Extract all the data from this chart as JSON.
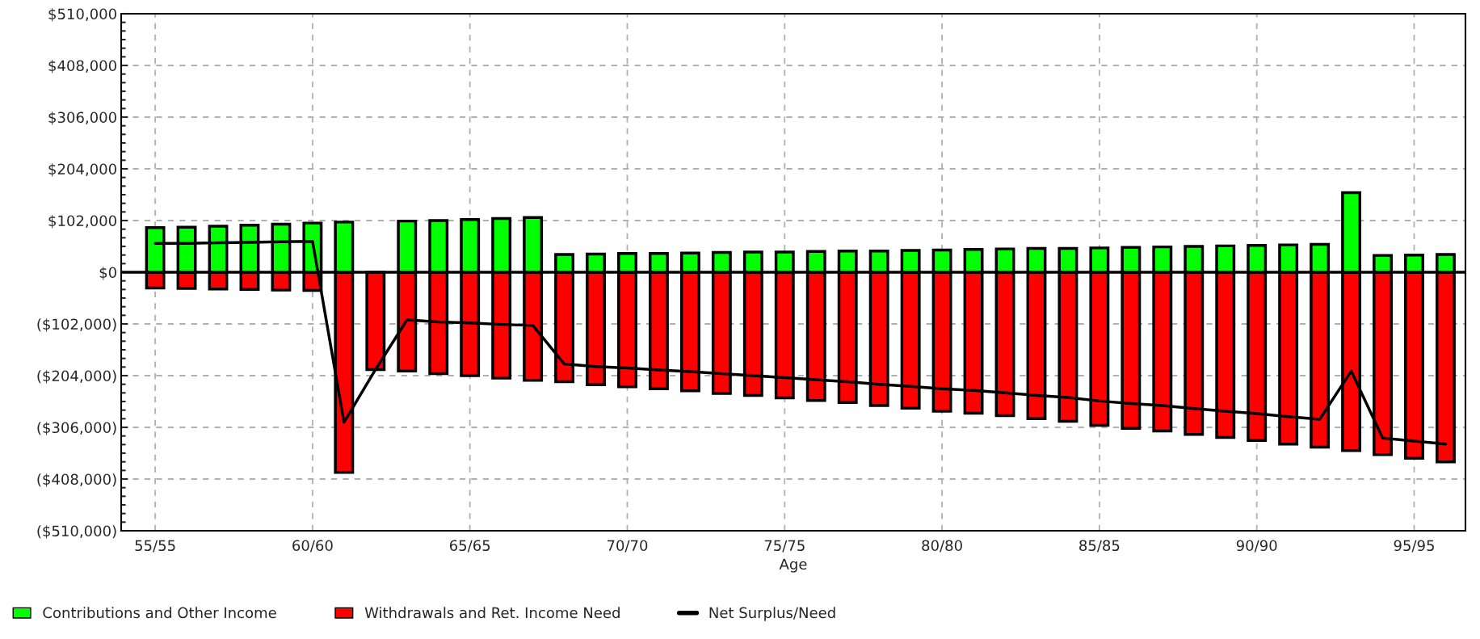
{
  "chart_data": {
    "type": "bar",
    "xlabel": "Age",
    "stacked": true,
    "categories": [
      "55/55",
      null,
      null,
      null,
      null,
      "60/60",
      null,
      null,
      null,
      null,
      "65/65",
      null,
      null,
      null,
      null,
      "70/70",
      null,
      null,
      null,
      null,
      "75/75",
      null,
      null,
      null,
      null,
      "80/80",
      null,
      null,
      null,
      null,
      "85/85",
      null,
      null,
      null,
      null,
      "90/90",
      null,
      null,
      null,
      null,
      "95/95",
      null
    ],
    "series": [
      {
        "name": "Contributions and Other Income",
        "color": "#00ff00",
        "values": [
          88000,
          89000,
          91000,
          93000,
          95000,
          97000,
          99000,
          null,
          101000,
          102000,
          104000,
          106000,
          108000,
          35000,
          36000,
          37000,
          37000,
          38000,
          39000,
          40000,
          40000,
          41000,
          42000,
          42000,
          43000,
          44000,
          45000,
          46000,
          47000,
          47000,
          48000,
          49000,
          50000,
          51000,
          52000,
          53000,
          54000,
          55000,
          157000,
          33000,
          34000,
          35000
        ]
      },
      {
        "name": "Withdrawals and Ret. Income Need",
        "color": "#ff0000",
        "values": [
          -31000,
          -32000,
          -33000,
          -34000,
          -35000,
          -36000,
          -395000,
          -192000,
          -195000,
          -200000,
          -204000,
          -209000,
          -213000,
          -216000,
          -222000,
          -226000,
          -230000,
          -234000,
          -239000,
          -243000,
          -248000,
          -253000,
          -257000,
          -263000,
          -268000,
          -274000,
          -278000,
          -283000,
          -289000,
          -294000,
          -302000,
          -308000,
          -313000,
          -320000,
          -326000,
          -332000,
          -339000,
          -345000,
          -352000,
          -360000,
          -367000,
          -374000
        ]
      },
      {
        "name": "Net Surplus/Need",
        "type": "line",
        "color": "#000000",
        "values": [
          57000,
          57000,
          58000,
          59000,
          60000,
          61000,
          -296000,
          -192000,
          -94000,
          -98000,
          -100000,
          -103000,
          -105000,
          -181000,
          -186000,
          -189000,
          -193000,
          -196000,
          -200000,
          -204000,
          -208000,
          -212000,
          -216000,
          -221000,
          -225000,
          -230000,
          -233000,
          -238000,
          -243000,
          -247000,
          -254000,
          -259000,
          -263000,
          -269000,
          -274000,
          -279000,
          -285000,
          -290000,
          -195000,
          -327000,
          -333000,
          -339000
        ]
      }
    ],
    "ylim": [
      -510000,
      510000
    ],
    "yticks": [
      {
        "value": -510000,
        "label": "($510,000)"
      },
      {
        "value": -408000,
        "label": "($408,000)"
      },
      {
        "value": -306000,
        "label": "($306,000)"
      },
      {
        "value": -204000,
        "label": "($204,000)"
      },
      {
        "value": -102000,
        "label": "($102,000)"
      },
      {
        "value": 0,
        "label": "$0"
      },
      {
        "value": 102000,
        "label": "$102,000"
      },
      {
        "value": 204000,
        "label": "$204,000"
      },
      {
        "value": 306000,
        "label": "$306,000"
      },
      {
        "value": 408000,
        "label": "$408,000"
      },
      {
        "value": 510000,
        "label": "$510,000"
      }
    ],
    "ref_lines": [
      {
        "axis": "y",
        "value": 0,
        "color": "#000000"
      }
    ],
    "grid": true,
    "legend": "bottom",
    "marker": "none",
    "line_style": "solid"
  }
}
